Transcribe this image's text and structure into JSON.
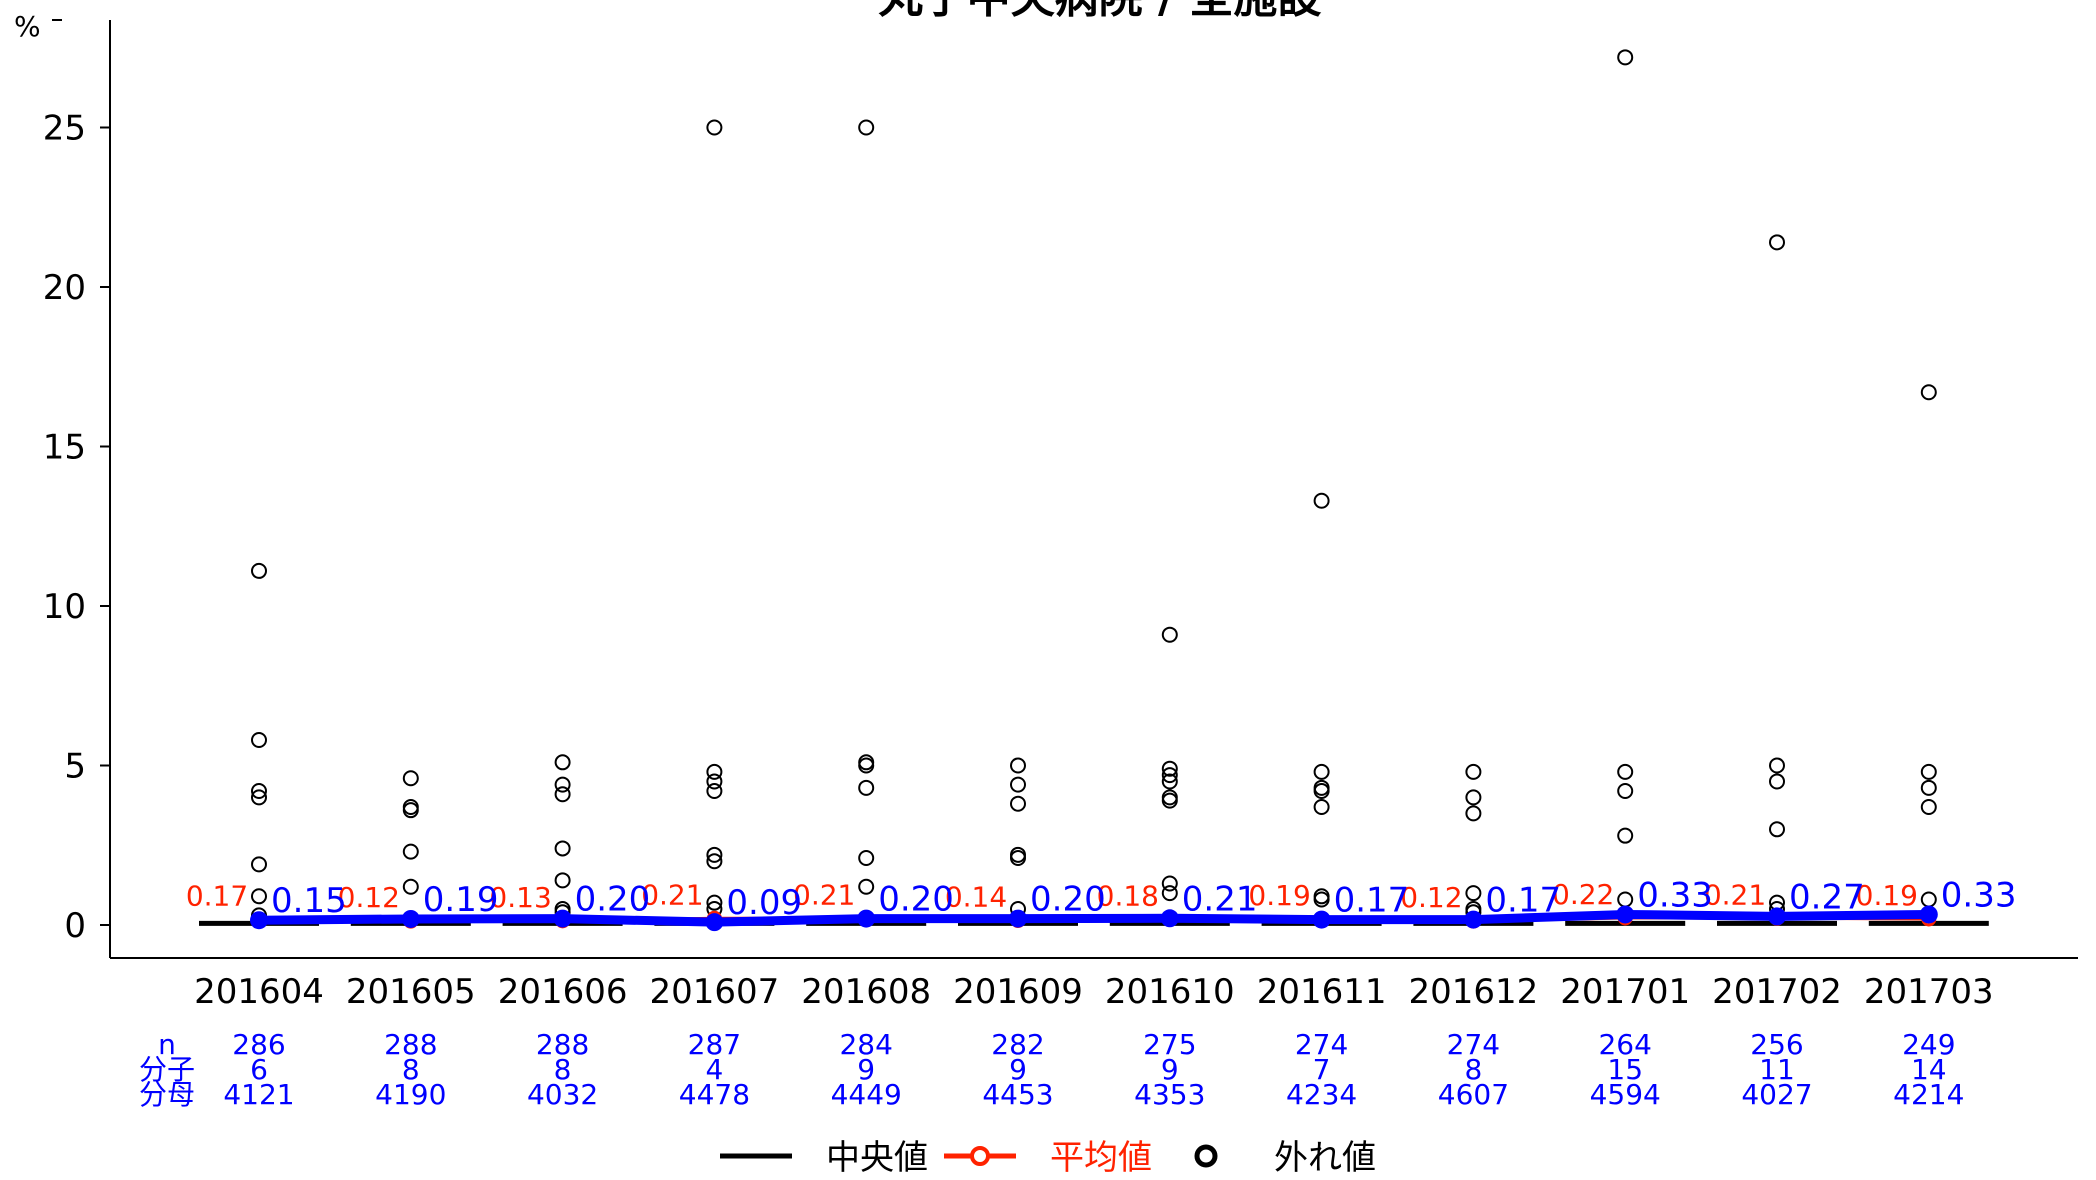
{
  "chart_data": {
    "type": "box",
    "title": "丸子中央病院 / 全施設",
    "ylabel": "%",
    "ylim": [
      0,
      28
    ],
    "yticks": [
      0,
      5,
      10,
      15,
      20,
      25
    ],
    "categories": [
      "201604",
      "201605",
      "201606",
      "201607",
      "201608",
      "201609",
      "201610",
      "201611",
      "201612",
      "201701",
      "201702",
      "201703"
    ],
    "median_all": [
      0.05,
      0.05,
      0.05,
      0.05,
      0.05,
      0.05,
      0.05,
      0.05,
      0.05,
      0.05,
      0.05,
      0.05
    ],
    "mean_all": [
      0.17,
      0.12,
      0.13,
      0.21,
      0.21,
      0.14,
      0.18,
      0.19,
      0.12,
      0.22,
      0.21,
      0.19
    ],
    "mean_all_labels": [
      "0.17",
      "0.12",
      "0.13",
      "0.21",
      "0.21",
      "0.14",
      "0.18",
      "0.19",
      "0.12",
      "0.22",
      "0.21",
      "0.19"
    ],
    "hospital_values": [
      0.15,
      0.19,
      0.2,
      0.09,
      0.2,
      0.2,
      0.21,
      0.17,
      0.17,
      0.33,
      0.27,
      0.33
    ],
    "hospital_labels": [
      "0.15",
      "0.19",
      "0.20",
      "0.09",
      "0.20",
      "0.20",
      "0.21",
      "0.17",
      "0.17",
      "0.33",
      "0.27",
      "0.33"
    ],
    "outliers": [
      [
        11.1,
        5.8,
        4.2,
        4.0,
        1.9,
        0.9,
        0.3
      ],
      [
        4.6,
        3.7,
        3.6,
        2.3,
        1.2
      ],
      [
        5.1,
        4.4,
        4.1,
        2.4,
        1.4,
        0.5,
        0.4
      ],
      [
        25.0,
        4.8,
        4.5,
        4.2,
        2.2,
        2.0,
        0.7,
        0.5
      ],
      [
        25.0,
        5.1,
        5.0,
        4.3,
        2.1,
        1.2
      ],
      [
        5.0,
        4.4,
        3.8,
        2.2,
        2.1,
        0.5
      ],
      [
        9.1,
        4.9,
        4.7,
        4.5,
        4.0,
        3.9,
        1.3,
        1.0
      ],
      [
        13.3,
        4.8,
        4.3,
        4.2,
        3.7,
        0.9,
        0.8
      ],
      [
        4.8,
        4.0,
        3.5,
        1.0,
        0.5,
        0.4
      ],
      [
        27.2,
        4.8,
        4.2,
        2.8,
        0.8
      ],
      [
        21.4,
        5.0,
        4.5,
        3.0,
        0.7,
        0.5
      ],
      [
        16.7,
        4.8,
        4.3,
        3.7,
        0.8
      ]
    ],
    "table": {
      "row_labels": [
        "n",
        "分子",
        "分母"
      ],
      "n": [
        "286",
        "288",
        "288",
        "287",
        "284",
        "282",
        "275",
        "274",
        "274",
        "264",
        "256",
        "249"
      ],
      "numerator": [
        "6",
        "8",
        "8",
        "4",
        "9",
        "9",
        "9",
        "7",
        "8",
        "15",
        "11",
        "14"
      ],
      "denominator": [
        "4121",
        "4190",
        "4032",
        "4478",
        "4449",
        "4453",
        "4353",
        "4234",
        "4607",
        "4594",
        "4027",
        "4214"
      ]
    },
    "legend": {
      "position": "bottom",
      "items": [
        "中央値",
        "平均値",
        "外れ値"
      ]
    },
    "colors": {
      "median": "#000000",
      "mean": "#ff2200",
      "hospital": "#0000ff",
      "outlier": "#000000",
      "table_text": "#0000ff"
    }
  }
}
